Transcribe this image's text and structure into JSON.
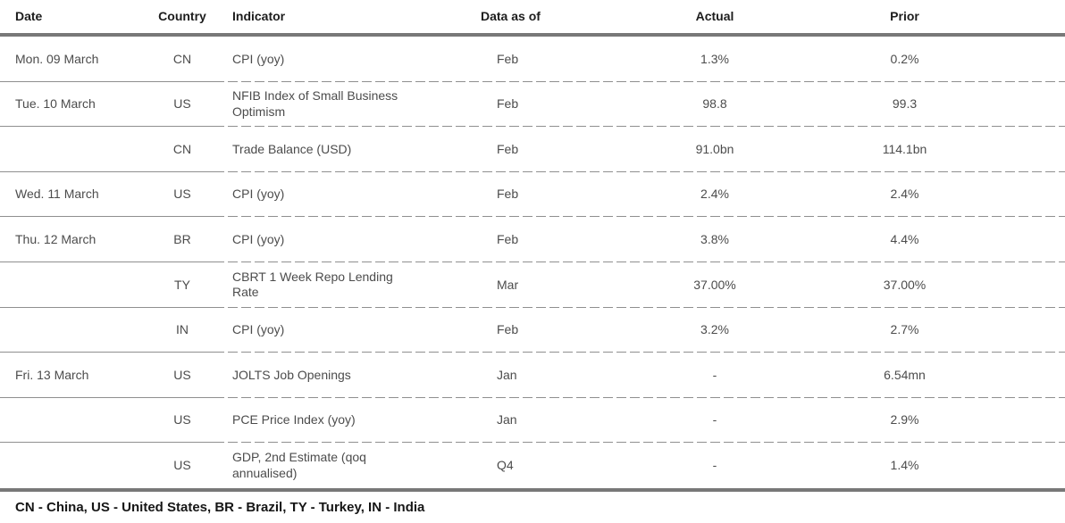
{
  "table": {
    "columns": [
      {
        "key": "date",
        "label": "Date"
      },
      {
        "key": "country",
        "label": "Country"
      },
      {
        "key": "indicator",
        "label": "Indicator"
      },
      {
        "key": "data_as_of",
        "label": "Data as of"
      },
      {
        "key": "actual",
        "label": "Actual"
      },
      {
        "key": "prior",
        "label": "Prior"
      }
    ],
    "rows": [
      {
        "date": "Mon. 09 March",
        "country": "CN",
        "indicator": "CPI (yoy)",
        "data_as_of": "Feb",
        "actual": "1.3%",
        "prior": "0.2%"
      },
      {
        "date": "Tue. 10 March",
        "country": "US",
        "indicator": "NFIB Index of Small Business Optimism",
        "data_as_of": "Feb",
        "actual": "98.8",
        "prior": "99.3"
      },
      {
        "date": "",
        "country": "CN",
        "indicator": "Trade Balance (USD)",
        "data_as_of": "Feb",
        "actual": "91.0bn",
        "prior": "114.1bn"
      },
      {
        "date": "Wed. 11 March",
        "country": "US",
        "indicator": "CPI (yoy)",
        "data_as_of": "Feb",
        "actual": "2.4%",
        "prior": "2.4%"
      },
      {
        "date": "Thu. 12 March",
        "country": "BR",
        "indicator": "CPI (yoy)",
        "data_as_of": "Feb",
        "actual": "3.8%",
        "prior": "4.4%"
      },
      {
        "date": "",
        "country": "TY",
        "indicator": "CBRT 1 Week Repo Lending Rate",
        "data_as_of": "Mar",
        "actual": "37.00%",
        "prior": "37.00%"
      },
      {
        "date": "",
        "country": "IN",
        "indicator": "CPI (yoy)",
        "data_as_of": "Feb",
        "actual": "3.2%",
        "prior": "2.7%"
      },
      {
        "date": "Fri. 13 March",
        "country": "US",
        "indicator": "JOLTS Job Openings",
        "data_as_of": "Jan",
        "actual": "-",
        "prior": "6.54mn"
      },
      {
        "date": "",
        "country": "US",
        "indicator": "PCE Price Index (yoy)",
        "data_as_of": "Jan",
        "actual": "-",
        "prior": "2.9%"
      },
      {
        "date": "",
        "country": "US",
        "indicator": "GDP, 2nd Estimate (qoq annualised)",
        "data_as_of": "Q4",
        "actual": "-",
        "prior": "1.4%"
      }
    ]
  },
  "footnote": {
    "text": "CN - China, US - United States, BR - Brazil, TY - Turkey, IN - India"
  },
  "colors": {
    "rule_thick": "#787878",
    "rule_solid": "#8f8f8f",
    "rule_dash": "#8f8f8f",
    "header_text": "#1d1d1d",
    "body_text": "#4c4c4c",
    "footnote_text": "#161616",
    "background": "#ffffff"
  }
}
